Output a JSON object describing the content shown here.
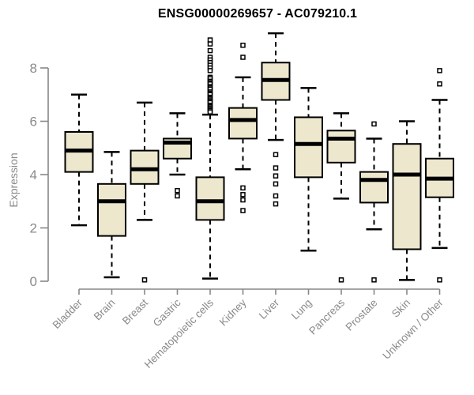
{
  "chart_data": {
    "type": "boxplot",
    "title": "ENSG00000269657 - AC079210.1",
    "ylabel": "Expression",
    "xlabel": "",
    "ylim": [
      0,
      9.4
    ],
    "yticks": [
      0,
      2,
      4,
      6,
      8
    ],
    "grid": false,
    "legend": "none",
    "categories": [
      "Bladder",
      "Brain",
      "Breast",
      "Gastric",
      "Hematopoietic cells",
      "Kidney",
      "Liver",
      "Lung",
      "Pancreas",
      "Prostate",
      "Skin",
      "Unknown / Other"
    ],
    "series": [
      {
        "category": "Bladder",
        "whisker_low": 2.1,
        "q1": 4.1,
        "median": 4.9,
        "q3": 5.6,
        "whisker_high": 7.0,
        "outliers": []
      },
      {
        "category": "Brain",
        "whisker_low": 0.15,
        "q1": 1.7,
        "median": 3.0,
        "q3": 3.65,
        "whisker_high": 4.85,
        "outliers": []
      },
      {
        "category": "Breast",
        "whisker_low": 2.3,
        "q1": 3.65,
        "median": 4.2,
        "q3": 4.9,
        "whisker_high": 6.7,
        "outliers": [
          0.05
        ]
      },
      {
        "category": "Gastric",
        "whisker_low": 4.0,
        "q1": 4.6,
        "median": 5.2,
        "q3": 5.35,
        "whisker_high": 6.3,
        "outliers": [
          3.4,
          3.2
        ]
      },
      {
        "category": "Hematopoietic cells",
        "whisker_low": 0.1,
        "q1": 2.3,
        "median": 3.0,
        "q3": 3.9,
        "whisker_high": 6.25,
        "outliers": [
          9.05,
          8.9,
          8.65,
          8.4,
          8.3,
          8.2,
          8.1,
          8.0,
          7.9,
          7.65,
          7.6,
          7.5,
          7.45,
          7.4,
          7.3,
          7.25,
          7.2,
          7.1,
          7.05,
          7.0,
          6.9,
          6.85,
          6.8,
          6.75,
          6.7,
          6.6,
          6.55,
          6.5,
          6.45,
          6.4,
          6.35
        ]
      },
      {
        "category": "Kidney",
        "whisker_low": 4.2,
        "q1": 5.35,
        "median": 6.05,
        "q3": 6.5,
        "whisker_high": 7.65,
        "outliers": [
          8.85,
          8.4,
          3.5,
          3.25,
          3.05,
          2.65
        ]
      },
      {
        "category": "Liver",
        "whisker_low": 5.3,
        "q1": 6.8,
        "median": 7.55,
        "q3": 8.2,
        "whisker_high": 9.3,
        "outliers": [
          4.75,
          4.25,
          3.95,
          3.65,
          3.2,
          2.9
        ]
      },
      {
        "category": "Lung",
        "whisker_low": 1.15,
        "q1": 3.9,
        "median": 5.15,
        "q3": 6.15,
        "whisker_high": 7.25,
        "outliers": []
      },
      {
        "category": "Pancreas",
        "whisker_low": 3.1,
        "q1": 4.45,
        "median": 5.35,
        "q3": 5.65,
        "whisker_high": 6.3,
        "outliers": [
          0.05
        ]
      },
      {
        "category": "Prostate",
        "whisker_low": 1.95,
        "q1": 2.95,
        "median": 3.8,
        "q3": 4.1,
        "whisker_high": 5.35,
        "outliers": [
          5.9,
          0.05
        ]
      },
      {
        "category": "Skin",
        "whisker_low": 0.05,
        "q1": 1.2,
        "median": 4.0,
        "q3": 5.15,
        "whisker_high": 6.0,
        "outliers": []
      },
      {
        "category": "Unknown / Other",
        "whisker_low": 1.25,
        "q1": 3.15,
        "median": 3.85,
        "q3": 4.6,
        "whisker_high": 6.8,
        "outliers": [
          7.9,
          7.4,
          0.05
        ]
      }
    ],
    "colors": {
      "box_fill": "#EDE7CE",
      "box_stroke": "#000000",
      "median": "#000000",
      "axis": "#878787",
      "tick_label": "#8a8a8a",
      "title": "#000000",
      "background": "#ffffff"
    }
  }
}
